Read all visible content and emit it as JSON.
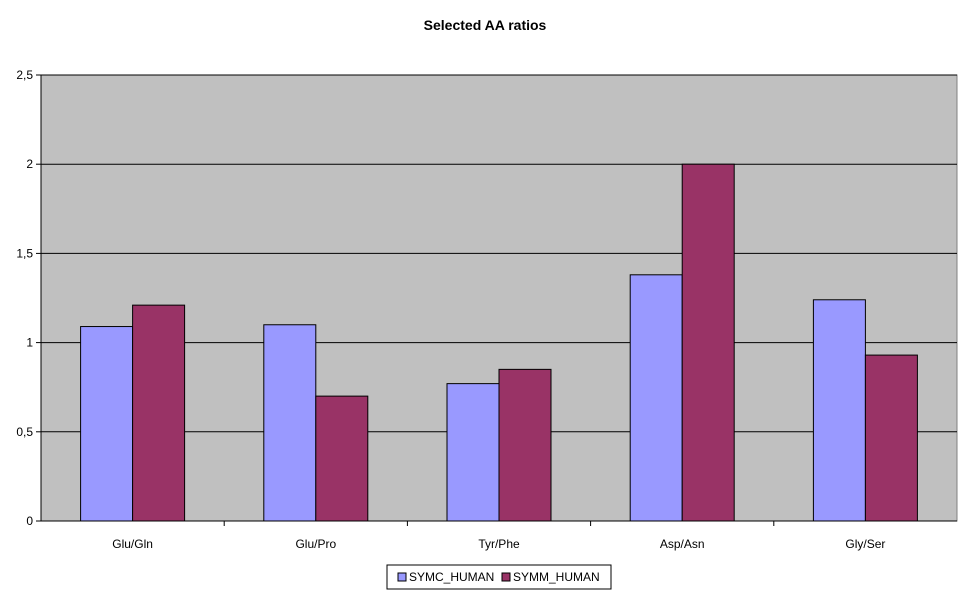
{
  "chart_data": {
    "type": "bar",
    "title": "Selected AA ratios",
    "xlabel": "",
    "ylabel": "",
    "categories": [
      "Glu/Gln",
      "Glu/Pro",
      "Tyr/Phe",
      "Asp/Asn",
      "Gly/Ser"
    ],
    "series": [
      {
        "name": "SYMC_HUMAN",
        "color": "#9999ff",
        "values": [
          1.09,
          1.1,
          0.77,
          1.38,
          1.24
        ]
      },
      {
        "name": "SYMM_HUMAN",
        "color": "#993366",
        "values": [
          1.21,
          0.7,
          0.85,
          2.0,
          0.93
        ]
      }
    ],
    "ylim": [
      0,
      2.5
    ],
    "yticks": [
      0,
      0.5,
      1,
      1.5,
      2,
      2.5
    ],
    "ytick_labels": [
      "0",
      "0,5",
      "1",
      "1,5",
      "2",
      "2,5"
    ],
    "grid": true,
    "plot_background": "#c0c0c0",
    "legend_position": "bottom"
  }
}
